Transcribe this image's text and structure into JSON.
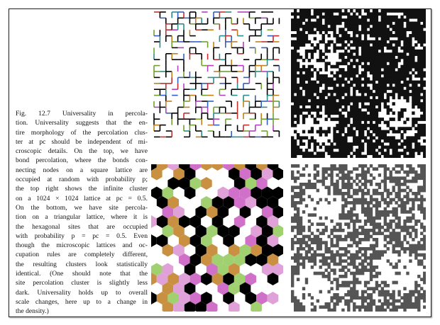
{
  "figure": {
    "caption_lines": [
      "Fig. 12.7 Universality in percola-",
      "tion. Universality suggests that the en-",
      "tire morphology of the percolation clus-",
      "ter at pc should be independent of mi-",
      "croscopic details. On the top, we have",
      "bond percolation, where the bonds con-",
      "necting nodes on a square lattice are",
      "occupied at random with probability p;",
      "the top right shows the infinite cluster",
      "on a 1024 × 1024 lattice at pc = 0.5.",
      "On the bottom, we have site percola-",
      "tion on a triangular lattice, where it is",
      "the hexagonal sites that are occupied",
      "with probability p = pc = 0.5. Even",
      "though the microscopic lattices and oc-",
      "cupation rules are completely different,",
      "the resulting clusters look statistically",
      "identical. (One should note that the",
      "site percolation cluster is slightly less",
      "dark. Universality holds up to overall",
      "scale changes, here up to a change in",
      "the density.)"
    ]
  }
}
